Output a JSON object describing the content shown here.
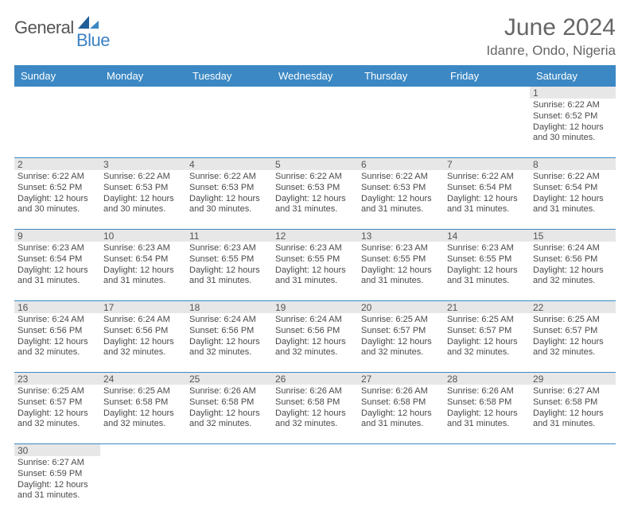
{
  "logo": {
    "word1": "General",
    "word2": "Blue"
  },
  "title": "June 2024",
  "location": "Idanre, Ondo, Nigeria",
  "colors": {
    "header_bg": "#3b88c4",
    "daynum_bg": "#e7e7e7",
    "row_sep": "#3b88c4",
    "text": "#4a4a4a"
  },
  "columns": [
    "Sunday",
    "Monday",
    "Tuesday",
    "Wednesday",
    "Thursday",
    "Friday",
    "Saturday"
  ],
  "weeks": [
    [
      null,
      null,
      null,
      null,
      null,
      null,
      {
        "n": "1",
        "sr": "6:22 AM",
        "ss": "6:52 PM",
        "dl": "12 hours and 30 minutes."
      }
    ],
    [
      {
        "n": "2",
        "sr": "6:22 AM",
        "ss": "6:52 PM",
        "dl": "12 hours and 30 minutes."
      },
      {
        "n": "3",
        "sr": "6:22 AM",
        "ss": "6:53 PM",
        "dl": "12 hours and 30 minutes."
      },
      {
        "n": "4",
        "sr": "6:22 AM",
        "ss": "6:53 PM",
        "dl": "12 hours and 30 minutes."
      },
      {
        "n": "5",
        "sr": "6:22 AM",
        "ss": "6:53 PM",
        "dl": "12 hours and 31 minutes."
      },
      {
        "n": "6",
        "sr": "6:22 AM",
        "ss": "6:53 PM",
        "dl": "12 hours and 31 minutes."
      },
      {
        "n": "7",
        "sr": "6:22 AM",
        "ss": "6:54 PM",
        "dl": "12 hours and 31 minutes."
      },
      {
        "n": "8",
        "sr": "6:22 AM",
        "ss": "6:54 PM",
        "dl": "12 hours and 31 minutes."
      }
    ],
    [
      {
        "n": "9",
        "sr": "6:23 AM",
        "ss": "6:54 PM",
        "dl": "12 hours and 31 minutes."
      },
      {
        "n": "10",
        "sr": "6:23 AM",
        "ss": "6:54 PM",
        "dl": "12 hours and 31 minutes."
      },
      {
        "n": "11",
        "sr": "6:23 AM",
        "ss": "6:55 PM",
        "dl": "12 hours and 31 minutes."
      },
      {
        "n": "12",
        "sr": "6:23 AM",
        "ss": "6:55 PM",
        "dl": "12 hours and 31 minutes."
      },
      {
        "n": "13",
        "sr": "6:23 AM",
        "ss": "6:55 PM",
        "dl": "12 hours and 31 minutes."
      },
      {
        "n": "14",
        "sr": "6:23 AM",
        "ss": "6:55 PM",
        "dl": "12 hours and 31 minutes."
      },
      {
        "n": "15",
        "sr": "6:24 AM",
        "ss": "6:56 PM",
        "dl": "12 hours and 32 minutes."
      }
    ],
    [
      {
        "n": "16",
        "sr": "6:24 AM",
        "ss": "6:56 PM",
        "dl": "12 hours and 32 minutes."
      },
      {
        "n": "17",
        "sr": "6:24 AM",
        "ss": "6:56 PM",
        "dl": "12 hours and 32 minutes."
      },
      {
        "n": "18",
        "sr": "6:24 AM",
        "ss": "6:56 PM",
        "dl": "12 hours and 32 minutes."
      },
      {
        "n": "19",
        "sr": "6:24 AM",
        "ss": "6:56 PM",
        "dl": "12 hours and 32 minutes."
      },
      {
        "n": "20",
        "sr": "6:25 AM",
        "ss": "6:57 PM",
        "dl": "12 hours and 32 minutes."
      },
      {
        "n": "21",
        "sr": "6:25 AM",
        "ss": "6:57 PM",
        "dl": "12 hours and 32 minutes."
      },
      {
        "n": "22",
        "sr": "6:25 AM",
        "ss": "6:57 PM",
        "dl": "12 hours and 32 minutes."
      }
    ],
    [
      {
        "n": "23",
        "sr": "6:25 AM",
        "ss": "6:57 PM",
        "dl": "12 hours and 32 minutes."
      },
      {
        "n": "24",
        "sr": "6:25 AM",
        "ss": "6:58 PM",
        "dl": "12 hours and 32 minutes."
      },
      {
        "n": "25",
        "sr": "6:26 AM",
        "ss": "6:58 PM",
        "dl": "12 hours and 32 minutes."
      },
      {
        "n": "26",
        "sr": "6:26 AM",
        "ss": "6:58 PM",
        "dl": "12 hours and 32 minutes."
      },
      {
        "n": "27",
        "sr": "6:26 AM",
        "ss": "6:58 PM",
        "dl": "12 hours and 31 minutes."
      },
      {
        "n": "28",
        "sr": "6:26 AM",
        "ss": "6:58 PM",
        "dl": "12 hours and 31 minutes."
      },
      {
        "n": "29",
        "sr": "6:27 AM",
        "ss": "6:58 PM",
        "dl": "12 hours and 31 minutes."
      }
    ],
    [
      {
        "n": "30",
        "sr": "6:27 AM",
        "ss": "6:59 PM",
        "dl": "12 hours and 31 minutes."
      },
      null,
      null,
      null,
      null,
      null,
      null
    ]
  ],
  "labels": {
    "sunrise": "Sunrise: ",
    "sunset": "Sunset: ",
    "daylight": "Daylight: "
  }
}
